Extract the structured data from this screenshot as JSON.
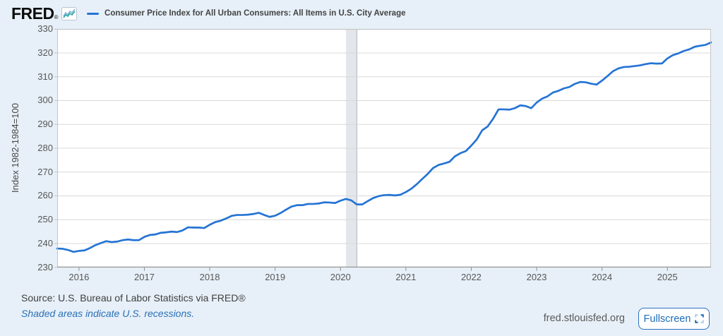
{
  "header": {
    "logo": "FRED",
    "logo_registered": "®",
    "legend_label": "Consumer Price Index for All Urban Consumers: All Items in U.S. City Average"
  },
  "chart_data": {
    "type": "line",
    "title": "Consumer Price Index for All Urban Consumers: All Items in U.S. City Average",
    "ylabel": "Index 1982-1984=100",
    "xlabel": "",
    "ylim": [
      230,
      330
    ],
    "y_ticks": [
      230,
      240,
      250,
      260,
      270,
      280,
      290,
      300,
      310,
      320,
      330
    ],
    "x_ticks": [
      2016,
      2017,
      2018,
      2019,
      2020,
      2021,
      2022,
      2023,
      2024,
      2025
    ],
    "x_domain": [
      2015.6667,
      2025.6667
    ],
    "grid": "horizontal-only",
    "legend_position": "top-left",
    "line_color": "#2574d4",
    "recession_band": {
      "start": 2020.0833,
      "end": 2020.25,
      "meaning": "U.S. recession (Feb–Apr 2020)",
      "color": "#e3e7eb",
      "edge_color": "#b9bec4"
    },
    "series": [
      {
        "name": "Consumer Price Index for All Urban Consumers: All Items in U.S. City Average",
        "freq": "monthly",
        "start": "2015-09",
        "end": "2025-09",
        "values": [
          237.9,
          237.8,
          237.3,
          236.5,
          236.9,
          237.1,
          238.1,
          239.3,
          240.2,
          241.0,
          240.6,
          240.8,
          241.4,
          241.7,
          241.4,
          241.4,
          242.8,
          243.6,
          243.8,
          244.5,
          244.7,
          245.0,
          244.8,
          245.5,
          246.8,
          246.7,
          246.7,
          246.5,
          247.9,
          249.0,
          249.6,
          250.5,
          251.6,
          252.0,
          252.0,
          252.1,
          252.4,
          252.9,
          252.0,
          251.2,
          251.7,
          252.8,
          254.2,
          255.5,
          256.1,
          256.1,
          256.6,
          256.6,
          256.8,
          257.3,
          257.2,
          257.0,
          258.0,
          258.7,
          258.1,
          256.4,
          256.4,
          257.8,
          259.1,
          259.9,
          260.3,
          260.4,
          260.2,
          260.5,
          261.6,
          263.0,
          264.9,
          267.1,
          269.2,
          271.7,
          273.0,
          273.6,
          274.3,
          276.6,
          277.9,
          278.8,
          281.1,
          283.7,
          287.5,
          289.1,
          292.3,
          296.3,
          296.3,
          296.2,
          296.8,
          298.0,
          297.7,
          296.8,
          299.2,
          300.8,
          301.8,
          303.4,
          304.1,
          305.1,
          305.7,
          307.0,
          307.8,
          307.7,
          307.1,
          306.7,
          308.4,
          310.3,
          312.3,
          313.5,
          314.1,
          314.2,
          314.5,
          314.8,
          315.3,
          315.7,
          315.5,
          315.6,
          317.7,
          319.1,
          319.8,
          320.8,
          321.5,
          322.6,
          323.0,
          323.4,
          324.4
        ]
      }
    ]
  },
  "footer": {
    "source": "Source: U.S. Bureau of Labor Statistics via FRED®",
    "recession_note": "Shaded areas indicate U.S. recessions.",
    "site": "fred.stlouisfed.org",
    "fullscreen_label": "Fullscreen"
  },
  "colors": {
    "page_background": "#e7f0f8",
    "plot_background": "#ffffff",
    "gridline": "#d8d8d8",
    "plot_frame": "#c4c4c4",
    "axis_line": "#8f8f8f",
    "series_line": "#2574d4",
    "recession_band": "#e3e7eb",
    "link_blue": "#2a6fb5",
    "fullscreen_blue": "#1d6db8",
    "logo_black": "#0c0c0c"
  }
}
